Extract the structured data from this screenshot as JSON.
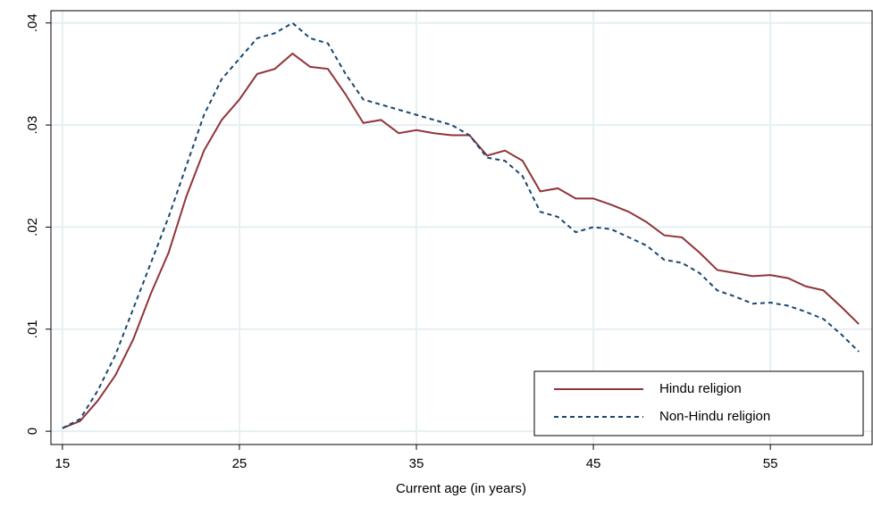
{
  "chart_data": {
    "type": "line",
    "xlabel": "Current age (in years)",
    "x": [
      15,
      16,
      17,
      18,
      19,
      20,
      21,
      22,
      23,
      24,
      25,
      26,
      27,
      28,
      29,
      30,
      31,
      32,
      33,
      34,
      35,
      36,
      37,
      38,
      39,
      40,
      41,
      42,
      43,
      44,
      45,
      46,
      47,
      48,
      49,
      50,
      51,
      52,
      53,
      54,
      55,
      56,
      57,
      58,
      59,
      60
    ],
    "series": [
      {
        "name": "Hindu religion",
        "color": "#90353b",
        "dash": false,
        "values": [
          0.0003,
          0.001,
          0.003,
          0.0055,
          0.009,
          0.0135,
          0.0175,
          0.023,
          0.0275,
          0.0305,
          0.0325,
          0.035,
          0.0355,
          0.037,
          0.0357,
          0.0355,
          0.033,
          0.0302,
          0.0305,
          0.0292,
          0.0295,
          0.0292,
          0.029,
          0.029,
          0.027,
          0.0275,
          0.0265,
          0.0235,
          0.0238,
          0.0228,
          0.0228,
          0.0222,
          0.0215,
          0.0205,
          0.0192,
          0.019,
          0.0175,
          0.0158,
          0.0155,
          0.0152,
          0.0153,
          0.015,
          0.0142,
          0.0138,
          0.0122,
          0.0105
        ]
      },
      {
        "name": "Non-Hindu religion",
        "color": "#1a476f",
        "dash": true,
        "values": [
          0.0003,
          0.0012,
          0.004,
          0.0075,
          0.012,
          0.0165,
          0.021,
          0.026,
          0.031,
          0.0345,
          0.0365,
          0.0385,
          0.039,
          0.04,
          0.0385,
          0.038,
          0.035,
          0.0325,
          0.032,
          0.0315,
          0.031,
          0.0305,
          0.03,
          0.029,
          0.0268,
          0.0265,
          0.025,
          0.0215,
          0.021,
          0.0195,
          0.02,
          0.0198,
          0.019,
          0.0182,
          0.0168,
          0.0165,
          0.0155,
          0.0138,
          0.0132,
          0.0125,
          0.0126,
          0.0123,
          0.0117,
          0.011,
          0.0095,
          0.0078
        ]
      }
    ],
    "xlim": [
      14.35,
      60.75
    ],
    "xticks": [
      15,
      25,
      35,
      45,
      55
    ],
    "ylim": [
      -0.0013,
      0.0412
    ],
    "yticks": [
      0,
      {
        "value": 0.01,
        "label": ".01"
      },
      {
        "value": 0.02,
        "label": ".02"
      },
      {
        "value": 0.03,
        "label": ".03"
      },
      {
        "value": 0.04,
        "label": ".04"
      }
    ],
    "grid": true,
    "legend": "lower right"
  }
}
